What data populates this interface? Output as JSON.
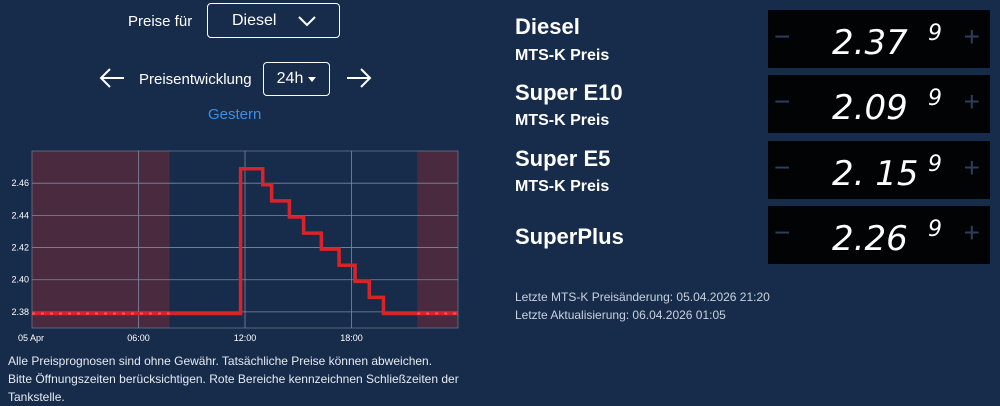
{
  "header": {
    "prices_for_label": "Preise für",
    "fuel_select_value": "Diesel",
    "trend_label": "Preisentwicklung",
    "range_select_value": "24h",
    "day_link": "Gestern"
  },
  "chart_data": {
    "type": "line",
    "title": "",
    "xlabel": "",
    "ylabel": "",
    "x_tick_labels": [
      "05 Apr",
      "06:00",
      "12:00",
      "18:00"
    ],
    "y_tick_labels": [
      "2.38",
      "2.40",
      "2.42",
      "2.44",
      "2.46"
    ],
    "ylim": [
      2.37,
      2.48
    ],
    "xlim_hours": [
      0,
      24
    ],
    "grid": true,
    "step_series": {
      "color": "#d9232a",
      "x_hours": [
        0,
        7.75,
        11.75,
        11.75,
        12.6,
        13.0,
        13.5,
        14.5,
        15.3,
        16.3,
        17.3,
        18.2,
        19.0,
        19.8,
        20.8,
        21.7,
        24.0
      ],
      "y": [
        2.379,
        2.379,
        2.379,
        2.469,
        2.469,
        2.459,
        2.449,
        2.439,
        2.429,
        2.419,
        2.409,
        2.399,
        2.389,
        2.379,
        2.379,
        2.379,
        2.379
      ]
    },
    "forecast_dashed": [
      [
        0,
        7.75
      ],
      [
        21.7,
        24
      ]
    ],
    "closed_ranges_hours": [
      [
        0,
        7.75
      ],
      [
        21.7,
        24
      ]
    ],
    "closed_color": "#4a2a3e"
  },
  "disclaimer": {
    "line1": "Alle Preisprognosen sind ohne Gewähr. Tatsächliche Preise können abweichen.",
    "line2": "Bitte Öffnungszeiten berücksichtigen. Rote Bereiche kennzeichnen Schließzeiten der",
    "line3": "Tankstelle."
  },
  "fuels": [
    {
      "name": "Diesel",
      "sub": "MTS-K Preis",
      "price_main": "2.37",
      "price_sup": "9"
    },
    {
      "name": "Super E10",
      "sub": "MTS-K Preis",
      "price_main": "2.09",
      "price_sup": "9"
    },
    {
      "name": "Super E5",
      "sub": "MTS-K Preis",
      "price_main": "2. 15",
      "price_sup": "9"
    },
    {
      "name": "SuperPlus",
      "sub": "",
      "price_main": "2.26",
      "price_sup": "9"
    }
  ],
  "price_box": {
    "minus": "−",
    "plus": "+"
  },
  "info": {
    "last_change": "Letzte MTS-K Preisänderung: 05.04.2026 21:20",
    "last_update": "Letzte Aktualisierung: 06.04.2026 01:05"
  },
  "icons": {
    "prev": "arrow-left-icon",
    "next": "arrow-right-icon",
    "dropdown": "chevron-down-icon"
  }
}
